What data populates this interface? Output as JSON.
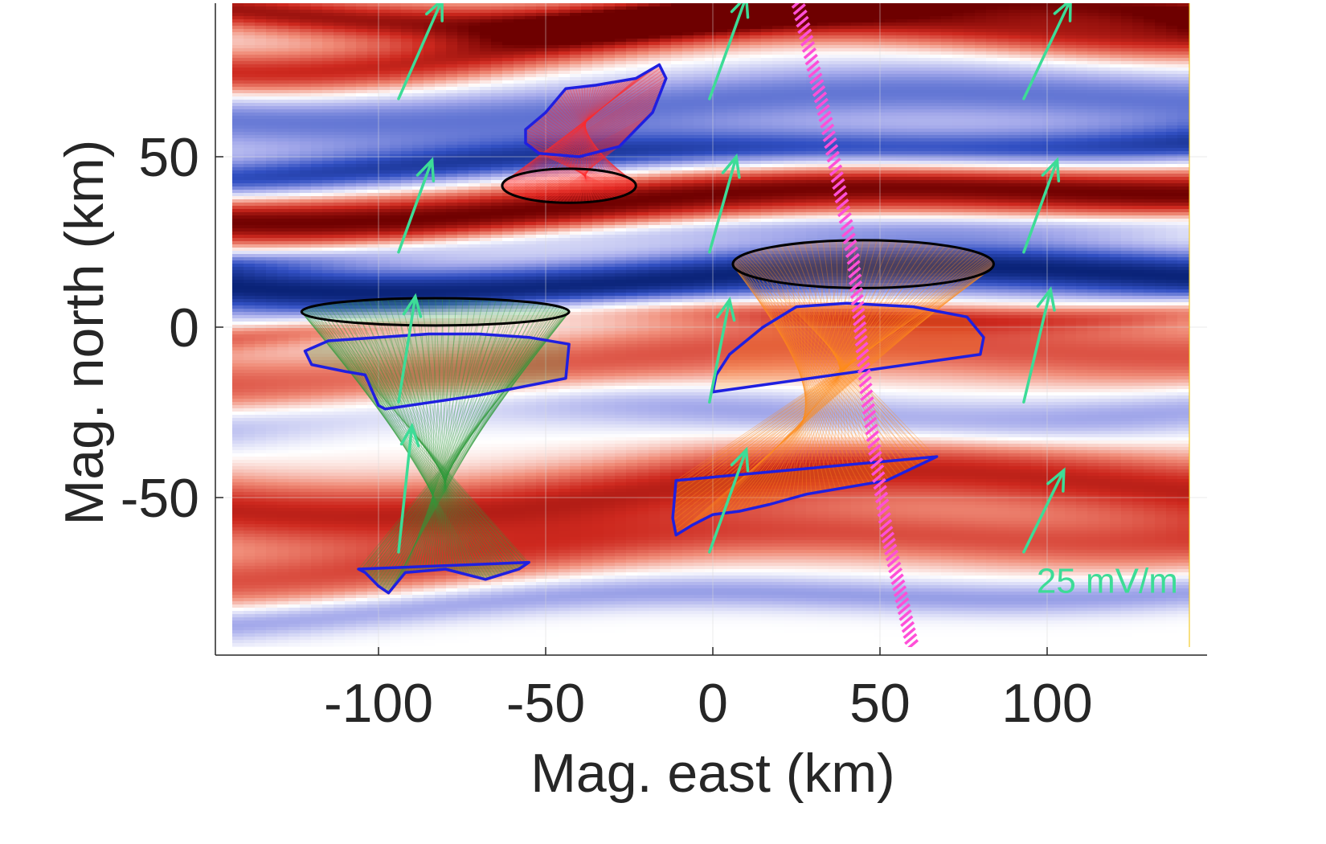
{
  "chart_data": {
    "type": "heatmap",
    "xlabel": "Mag. east (km)",
    "ylabel": "Mag. north (km)",
    "xlim": [
      -147,
      143
    ],
    "ylim": [
      -95,
      97
    ],
    "x_ticks": [
      -100,
      -50,
      0,
      50,
      100
    ],
    "y_ticks": [
      -50,
      0,
      50
    ],
    "x_tick_labels": [
      "-100",
      "-50",
      "0",
      "50",
      "100"
    ],
    "y_tick_labels": [
      "-50",
      "0",
      "50"
    ],
    "grid": true,
    "colormap": "blue-white-red (diverging)",
    "bands": [
      {
        "y0": 93,
        "thickness": 6,
        "value": 0.85,
        "amp": 4,
        "phase": 0.0
      },
      {
        "y0": 84,
        "thickness": 7,
        "value": 0.75,
        "amp": 5,
        "phase": 1.2
      },
      {
        "y0": 65,
        "thickness": 9,
        "value": -0.55,
        "amp": 3,
        "phase": 0.5
      },
      {
        "y0": 50,
        "thickness": 6,
        "value": -0.8,
        "amp": 2,
        "phase": 2.0
      },
      {
        "y0": 37,
        "thickness": 8,
        "value": 1.0,
        "amp": 3,
        "phase": 0.8
      },
      {
        "y0": 27,
        "thickness": 4,
        "value": -0.35,
        "amp": 2,
        "phase": 1.7
      },
      {
        "y0": 14,
        "thickness": 8,
        "value": -1.0,
        "amp": 3,
        "phase": 0.3
      },
      {
        "y0": 3,
        "thickness": 4,
        "value": 0.45,
        "amp": 3,
        "phase": 2.4
      },
      {
        "y0": -10,
        "thickness": 10,
        "value": 0.55,
        "amp": 4,
        "phase": 1.0
      },
      {
        "y0": -25,
        "thickness": 7,
        "value": -0.4,
        "amp": 4,
        "phase": 2.8
      },
      {
        "y0": -48,
        "thickness": 10,
        "value": 0.75,
        "amp": 5,
        "phase": 0.6
      },
      {
        "y0": -65,
        "thickness": 8,
        "value": 0.55,
        "amp": 4,
        "phase": 1.5
      },
      {
        "y0": -80,
        "thickness": 5,
        "value": -0.4,
        "amp": 3,
        "phase": 2.2
      }
    ],
    "arrows": {
      "color": "#3ddc97",
      "scale_label": "25 mV/m",
      "vectors": [
        {
          "x": -94,
          "y": 67,
          "dx": 13,
          "dy": 29
        },
        {
          "x": -1,
          "y": 67,
          "dx": 11,
          "dy": 30
        },
        {
          "x": 93,
          "y": 67,
          "dx": 14,
          "dy": 29
        },
        {
          "x": -94,
          "y": 22,
          "dx": 10,
          "dy": 27
        },
        {
          "x": -1,
          "y": 22,
          "dx": 8,
          "dy": 28
        },
        {
          "x": 93,
          "y": 22,
          "dx": 10,
          "dy": 27
        },
        {
          "x": -94,
          "y": -22,
          "dx": 5,
          "dy": 31
        },
        {
          "x": -1,
          "y": -22,
          "dx": 6,
          "dy": 30
        },
        {
          "x": 93,
          "y": -22,
          "dx": 8,
          "dy": 33
        },
        {
          "x": -94,
          "y": -66,
          "dx": 4,
          "dy": 37
        },
        {
          "x": -1,
          "y": -66,
          "dx": 11,
          "dy": 30
        },
        {
          "x": 93,
          "y": -66,
          "dx": 12,
          "dy": 24
        }
      ]
    },
    "magenta_track": {
      "color": "#ff4fd8",
      "points": [
        [
          25,
          97
        ],
        [
          34,
          60
        ],
        [
          42,
          20
        ],
        [
          46,
          -20
        ],
        [
          52,
          -60
        ],
        [
          60,
          -95
        ]
      ]
    },
    "flux_tubes": [
      {
        "name": "red",
        "fill": "#ff2a2a",
        "top_ellipse": {
          "cx": -43,
          "cy": 41.5,
          "rx": 20,
          "ry": 5
        },
        "blue_loop": [
          [
            -56,
            58
          ],
          [
            -50,
            63
          ],
          [
            -44,
            70
          ],
          [
            -35,
            71
          ],
          [
            -23,
            73
          ],
          [
            -16,
            77
          ],
          [
            -14,
            73
          ],
          [
            -18,
            63
          ],
          [
            -28,
            53
          ],
          [
            -40,
            50
          ],
          [
            -52,
            51
          ],
          [
            -56,
            54
          ],
          [
            -56,
            58
          ]
        ]
      },
      {
        "name": "green",
        "fill": "#2e9a3a",
        "top_ellipse": {
          "cx": -83,
          "cy": 4.5,
          "rx": 40,
          "ry": 4
        },
        "blue_loop": [
          [
            -122,
            -7
          ],
          [
            -115,
            -4
          ],
          [
            -100,
            -3
          ],
          [
            -85,
            -2
          ],
          [
            -70,
            -2
          ],
          [
            -55,
            -3
          ],
          [
            -43,
            -5
          ],
          [
            -44,
            -15
          ],
          [
            -70,
            -20
          ],
          [
            -98,
            -24
          ],
          [
            -100,
            -23
          ],
          [
            -104,
            -14
          ],
          [
            -110,
            -13
          ],
          [
            -120,
            -11
          ],
          [
            -122,
            -7
          ]
        ],
        "bottom_loop": [
          [
            -106,
            -71
          ],
          [
            -55,
            -69
          ],
          [
            -58,
            -71
          ],
          [
            -68,
            -74
          ],
          [
            -80,
            -71
          ],
          [
            -92,
            -72
          ],
          [
            -97,
            -78
          ],
          [
            -100,
            -76
          ],
          [
            -104,
            -72
          ],
          [
            -106,
            -71
          ]
        ]
      },
      {
        "name": "orange",
        "fill": "#ff8c1a",
        "top_ellipse": {
          "cx": 45,
          "cy": 18.5,
          "rx": 39,
          "ry": 7
        },
        "blue_loop": [
          [
            0,
            -19
          ],
          [
            80,
            -8
          ],
          [
            81,
            -3
          ],
          [
            76,
            3
          ],
          [
            60,
            6
          ],
          [
            40,
            7
          ],
          [
            25,
            6
          ],
          [
            15,
            0
          ],
          [
            5,
            -8
          ],
          [
            1,
            -14
          ],
          [
            0,
            -19
          ]
        ],
        "bottom_loop": [
          [
            -11,
            -45
          ],
          [
            67,
            -38
          ],
          [
            52,
            -45
          ],
          [
            40,
            -47
          ],
          [
            28,
            -49
          ],
          [
            17,
            -52
          ],
          [
            8,
            -54
          ],
          [
            0,
            -55
          ],
          [
            -6,
            -58
          ],
          [
            -11,
            -61
          ],
          [
            -12,
            -56
          ],
          [
            -11,
            -45
          ]
        ]
      }
    ],
    "series": []
  }
}
